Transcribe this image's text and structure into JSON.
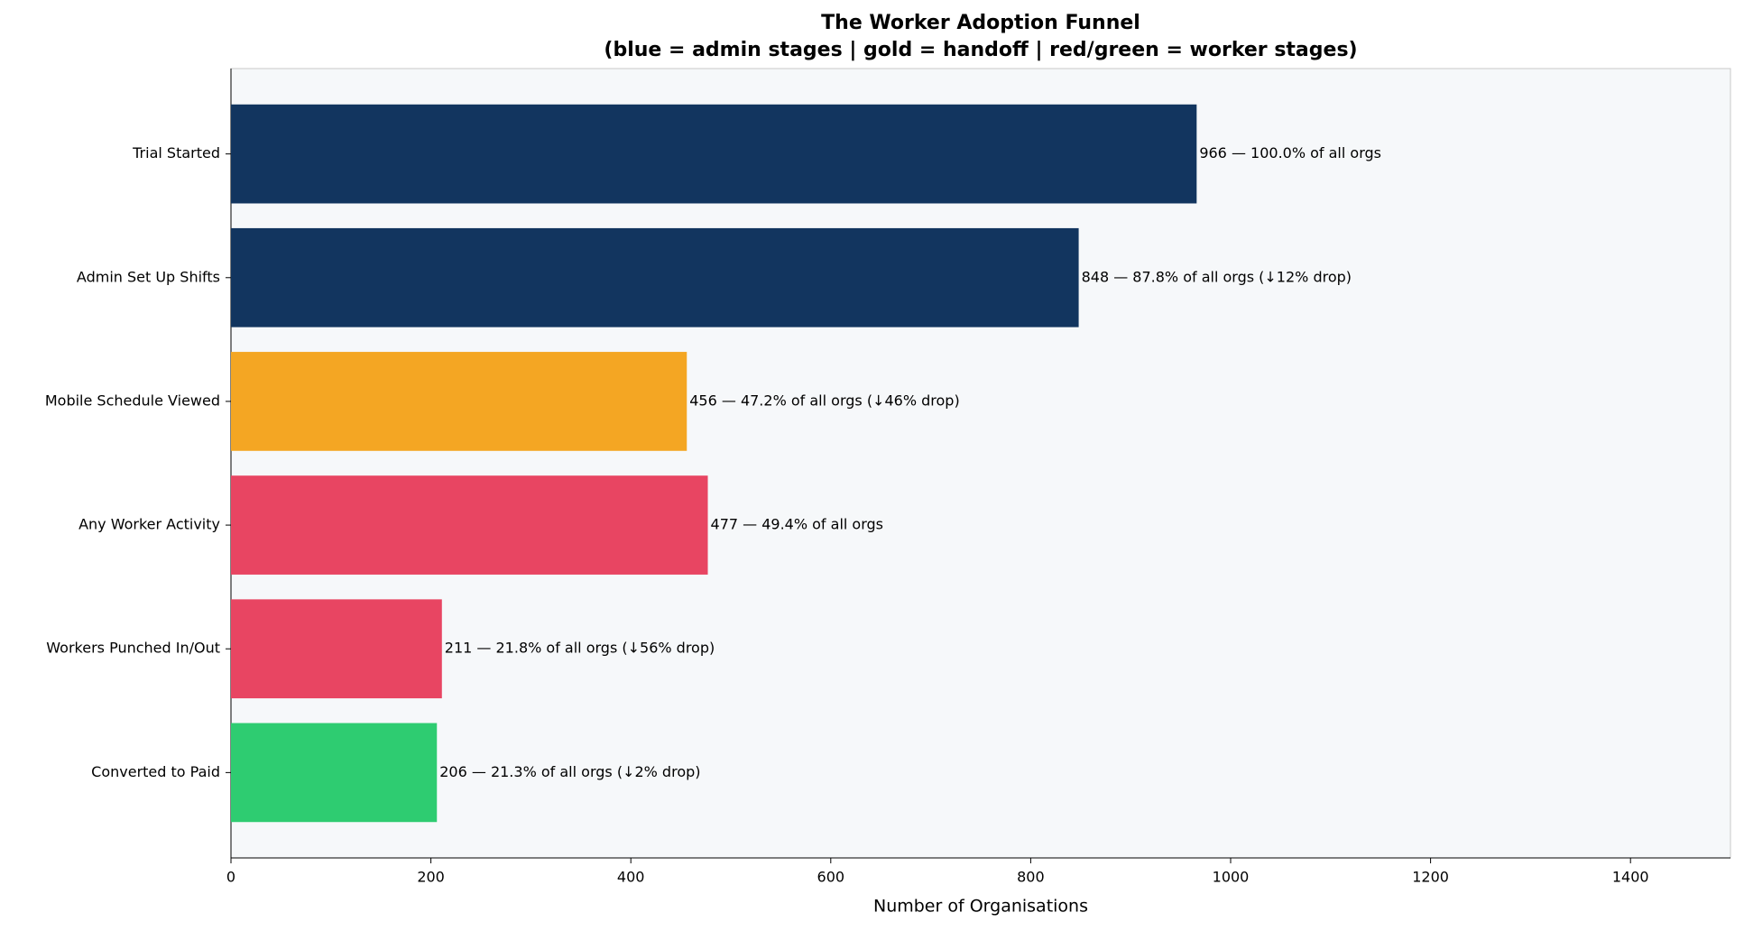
{
  "chart_data": {
    "type": "barh",
    "title": "The Worker Adoption Funnel",
    "subtitle": "(blue = admin stages | gold = handoff | red/green = worker stages)",
    "xlabel": "Number of Organisations",
    "categories": [
      "Trial Started",
      "Admin Set Up Shifts",
      "Mobile Schedule Viewed",
      "Any Worker Activity",
      "Workers Punched In/Out",
      "Converted to Paid"
    ],
    "values": [
      966,
      848,
      456,
      477,
      211,
      206
    ],
    "value_labels": [
      "966  —  100.0% of all orgs",
      "848  —  87.8% of all orgs  (↓12% drop)",
      "456  —  47.2% of all orgs  (↓46% drop)",
      "477  —  49.4% of all orgs",
      "211  —  21.8% of all orgs  (↓56% drop)",
      "206  —  21.3% of all orgs  (↓2% drop)"
    ],
    "colors": [
      "#12355f",
      "#12355f",
      "#f4a623",
      "#e84562",
      "#e84562",
      "#2ecc71"
    ],
    "xlim": [
      0,
      1500
    ],
    "xticks": [
      0,
      200,
      400,
      600,
      800,
      1000,
      1200,
      1400
    ],
    "grid": false
  }
}
